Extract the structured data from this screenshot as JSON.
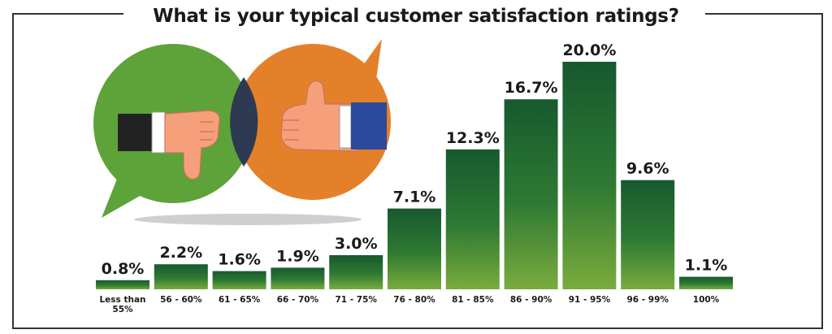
{
  "chart_data": {
    "type": "bar",
    "title": "What is your typical customer satisfaction ratings?",
    "categories": [
      "Less than 55%",
      "56 - 60%",
      "61 - 65%",
      "66 - 70%",
      "71 - 75%",
      "76 - 80%",
      "81 - 85%",
      "86 - 90%",
      "91 - 95%",
      "96 - 99%",
      "100%"
    ],
    "values": [
      0.8,
      2.2,
      1.6,
      1.9,
      3.0,
      7.1,
      12.3,
      16.7,
      20.0,
      9.6,
      1.1
    ],
    "value_labels": [
      "0.8%",
      "2.2%",
      "1.6%",
      "1.9%",
      "3.0%",
      "7.1%",
      "12.3%",
      "16.7%",
      "20.0%",
      "9.6%",
      "1.1%"
    ],
    "xlabel": "",
    "ylabel": "",
    "ylim": [
      0,
      20
    ],
    "grid": false,
    "legend": "none",
    "colors": {
      "bar_top": "#17592f",
      "bar_bottom": "#7aab3e",
      "frame": "#333333",
      "text": "#1a1a1a"
    }
  },
  "illustration": {
    "left_bubble_icon": "thumbs-down-icon",
    "right_bubble_icon": "thumbs-up-icon",
    "colors": {
      "green": "#5ea33a",
      "orange": "#e5802a",
      "overlap": "#2e3a52",
      "skin": "#f5a07a",
      "cuff_dark": "#222222",
      "cuff_blue": "#2c4a9c"
    }
  }
}
